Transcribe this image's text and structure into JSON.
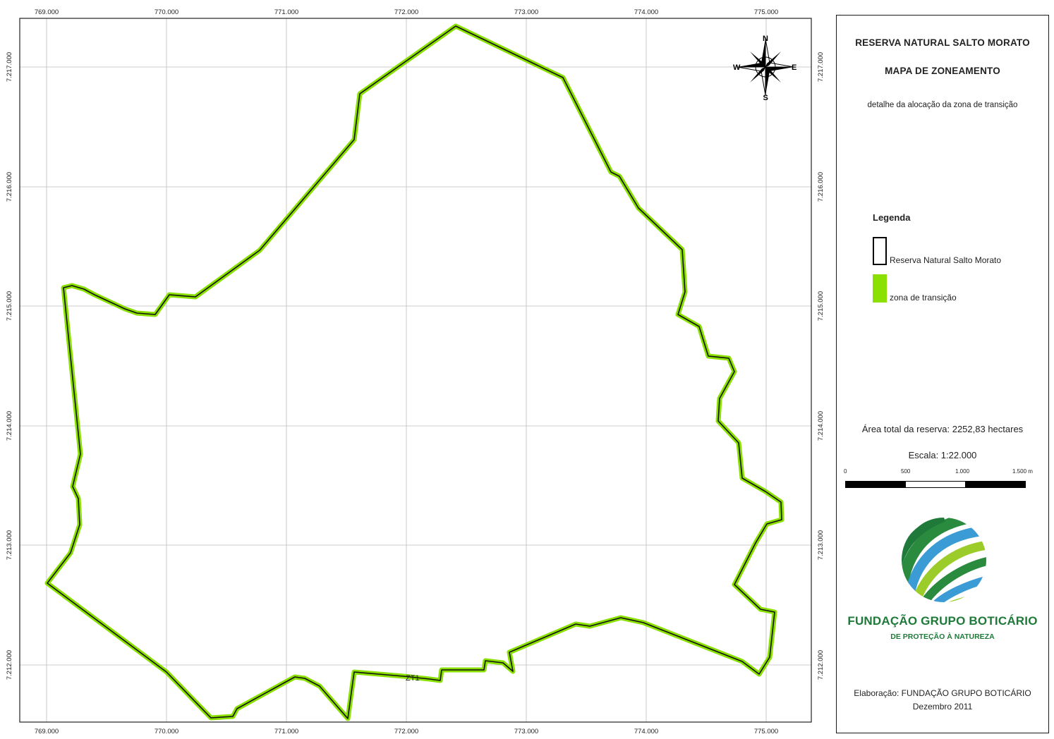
{
  "map": {
    "x_ticks": [
      "769.000",
      "770.000",
      "771.000",
      "772.000",
      "773.000",
      "774.000",
      "775.000"
    ],
    "y_ticks": [
      "7.217.000",
      "7.216.000",
      "7.215.000",
      "7.214.000",
      "7.213.000",
      "7.212.000"
    ],
    "zone_label": "ZT1",
    "compass": {
      "n": "N",
      "s": "S",
      "e": "E",
      "w": "W"
    }
  },
  "panel": {
    "title": "RESERVA NATURAL SALTO MORATO",
    "subtitle": "MAPA DE ZONEAMENTO",
    "description": "detalhe da alocação da zona de transição",
    "legend": {
      "title": "Legenda",
      "items": [
        {
          "label": "Reserva Natural Salto Morato",
          "color": "#000000"
        },
        {
          "label": "zona de transição",
          "color": "#8ae000"
        }
      ]
    },
    "area": "Área total da reserva: 2252,83 hectares",
    "scale": {
      "label": "Escala:   1:22.000",
      "ticks": [
        "0",
        "500",
        "1.000",
        "1.500 m"
      ]
    },
    "logo": {
      "name": "FUNDAÇÃO GRUPO BOTICÁRIO",
      "tagline": "DE PROTEÇÃO À NATUREZA"
    },
    "credit_line1": "Elaboração: FUNDAÇÃO GRUPO BOTICÁRIO",
    "credit_line2": "Dezembro 2011"
  }
}
